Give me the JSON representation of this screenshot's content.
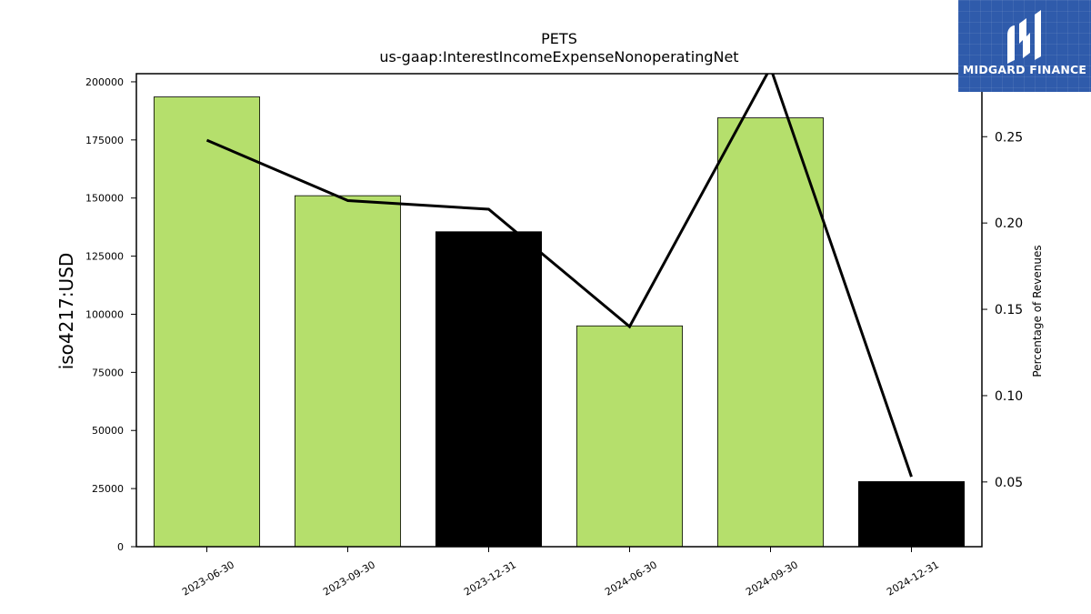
{
  "chart_data": {
    "type": "bar",
    "title": "PETS",
    "subtitle": "us-gaap:InterestIncomeExpenseNonoperatingNet",
    "ylabel": "iso4217:USD",
    "y2label": "Percentage of Revenues",
    "categories": [
      "2023-06-30",
      "2023-09-30",
      "2023-12-31",
      "2024-06-30",
      "2024-09-30",
      "2024-12-31"
    ],
    "values": [
      193500,
      151000,
      135500,
      95000,
      184500,
      28000
    ],
    "bar_colors": [
      "#b5df6c",
      "#b5df6c",
      "#000000",
      "#b5df6c",
      "#b5df6c",
      "#000000"
    ],
    "line": {
      "values": [
        0.248,
        0.213,
        0.208,
        0.14,
        0.29,
        0.053
      ],
      "color": "#000000"
    },
    "ylim": [
      0,
      203500
    ],
    "y2lim": [
      0.0125,
      0.2865
    ],
    "yticks": [
      0,
      25000,
      50000,
      75000,
      100000,
      125000,
      150000,
      175000,
      200000
    ],
    "y2ticks": [
      "0.05",
      "0.10",
      "0.15",
      "0.20",
      "0.25"
    ],
    "grid": false
  },
  "logo": {
    "text": "MIDGARD FINANCE",
    "background": "#2f5bab"
  }
}
